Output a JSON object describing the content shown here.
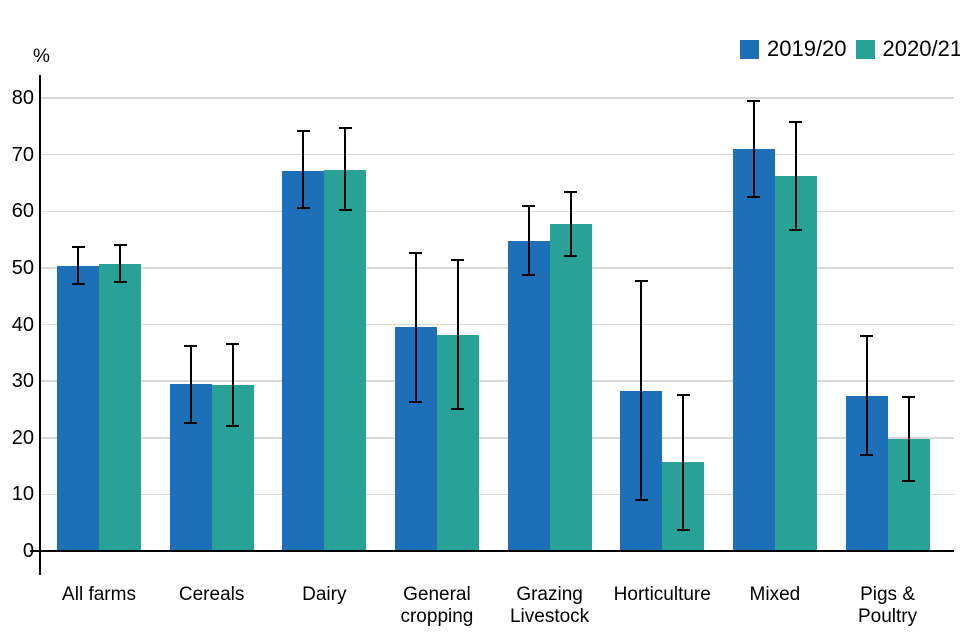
{
  "unit_label": "%",
  "legend": {
    "items": [
      {
        "label": "2019/20",
        "color": "#1d70b8"
      },
      {
        "label": "2020/21",
        "color": "#28a197"
      }
    ]
  },
  "chart_data": {
    "type": "bar",
    "title": "",
    "xlabel": "",
    "ylabel": "%",
    "ylim": [
      0,
      80
    ],
    "ytick_step": 10,
    "grid": true,
    "gridline_color": "#d9d9d9",
    "axis_color": "#000000",
    "legend_position": "top-right",
    "categories": [
      "All farms",
      "Cereals",
      "Dairy",
      "General cropping",
      "Grazing Livestock",
      "Horticulture",
      "Mixed",
      "Pigs & Poultry"
    ],
    "category_label_lines": [
      [
        "All farms"
      ],
      [
        "Cereals"
      ],
      [
        "Dairy"
      ],
      [
        "General",
        "cropping"
      ],
      [
        "Grazing",
        "Livestock"
      ],
      [
        "Horticulture"
      ],
      [
        "Mixed"
      ],
      [
        "Pigs &",
        "Poultry"
      ]
    ],
    "series": [
      {
        "name": "2019/20",
        "color": "#1d70b8",
        "values": [
          50.3,
          29.5,
          67.1,
          39.6,
          54.8,
          28.2,
          71.0,
          27.4
        ],
        "error_low": [
          47.0,
          22.4,
          60.4,
          26.1,
          48.5,
          8.8,
          62.3,
          16.7
        ],
        "error_high": [
          53.8,
          36.4,
          74.3,
          52.8,
          61.1,
          47.9,
          79.7,
          38.2
        ]
      },
      {
        "name": "2020/21",
        "color": "#28a197",
        "values": [
          50.7,
          29.4,
          67.3,
          38.2,
          57.8,
          15.8,
          66.3,
          19.7
        ],
        "error_low": [
          47.3,
          21.9,
          60.1,
          24.9,
          52.0,
          3.6,
          56.5,
          12.1
        ],
        "error_high": [
          54.3,
          36.7,
          74.8,
          51.5,
          63.6,
          27.7,
          76.0,
          27.3
        ]
      }
    ]
  }
}
